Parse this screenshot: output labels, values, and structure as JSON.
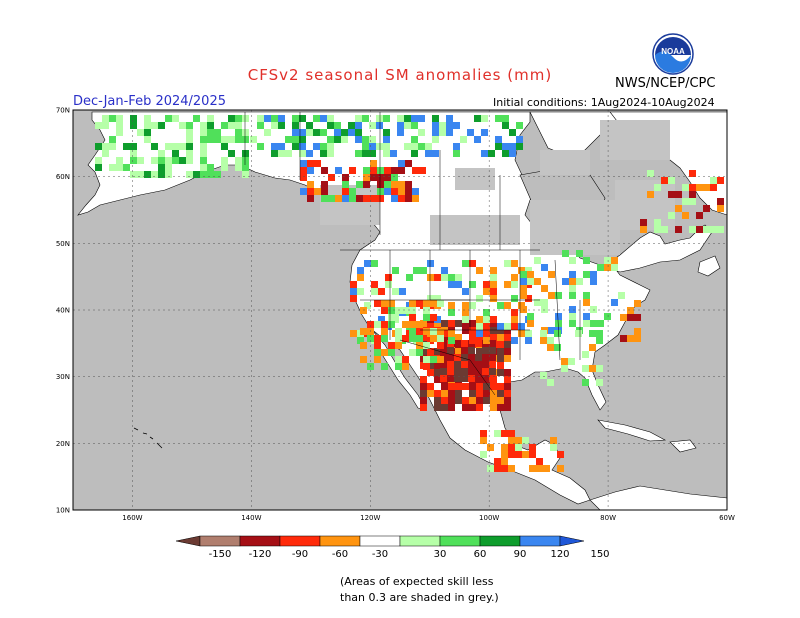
{
  "header": {
    "title": "CFSv2 seasonal SM anomalies (mm)",
    "agency": "NWS/NCEP/CPC",
    "season": "Dec-Jan-Feb 2024/2025",
    "initial_conditions": "Initial conditions: 1Aug2024-10Aug2024",
    "logo_text": "NOAA"
  },
  "axes": {
    "lat_labels": [
      "70N",
      "60N",
      "50N",
      "40N",
      "30N",
      "20N",
      "10N"
    ],
    "lon_labels": [
      "160W",
      "140W",
      "120W",
      "100W",
      "80W",
      "60W"
    ]
  },
  "colorbar": {
    "labels": [
      "-150",
      "-120",
      "-90",
      "-60",
      "-30",
      "30",
      "60",
      "90",
      "120",
      "150"
    ],
    "colors": [
      "#6b3a32",
      "#b07e6e",
      "#a50f15",
      "#ff2a0a",
      "#ff9410",
      "#ffffff",
      "#b6ffa8",
      "#50e05a",
      "#0e9d2c",
      "#3a86f0",
      "#1f57d8"
    ]
  },
  "footnote": {
    "line1": "(Areas of expected skill less",
    "line2": "than 0.3 are shaded in grey.)"
  },
  "colors": {
    "ocean": "#bdbdbd",
    "land": "#ffffff",
    "skill_mask": "#c4c4c4",
    "coast": "#000000"
  },
  "map": {
    "projection": "cylindrical equidistant",
    "lon_range": [
      -170,
      -60
    ],
    "lat_range": [
      10,
      70
    ]
  }
}
